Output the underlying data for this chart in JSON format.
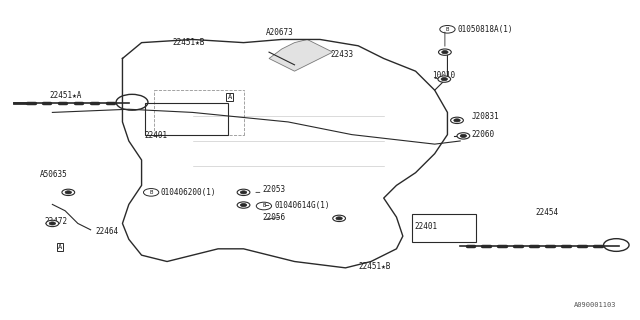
{
  "bg_color": "#ffffff",
  "line_color": "#2a2a2a",
  "text_color": "#1a1a1a",
  "fig_width": 6.4,
  "fig_height": 3.2,
  "dpi": 100,
  "watermark": "A090001103",
  "labels": {
    "22451B_top": [
      0.285,
      0.845,
      "22451★B"
    ],
    "A20673": [
      0.43,
      0.885,
      "A20673"
    ],
    "22433": [
      0.535,
      0.82,
      "22433"
    ],
    "B01050818A": [
      0.75,
      0.91,
      "Ⓑ  01050818A(1)"
    ],
    "10010": [
      0.695,
      0.755,
      "10010"
    ],
    "22451A": [
      0.12,
      0.69,
      "22451★A"
    ],
    "22401_left": [
      0.245,
      0.565,
      "22401"
    ],
    "J20831": [
      0.755,
      0.625,
      "J20831"
    ],
    "22060": [
      0.745,
      0.575,
      "22060"
    ],
    "A50635": [
      0.075,
      0.44,
      "A50635"
    ],
    "B010406200": [
      0.235,
      0.395,
      "Ⓑ  010406200(1)"
    ],
    "22053": [
      0.445,
      0.4,
      "22053"
    ],
    "B01040614G": [
      0.465,
      0.345,
      "Ⓑ  01040614G(1)"
    ],
    "22056": [
      0.435,
      0.315,
      "22056"
    ],
    "22472": [
      0.09,
      0.295,
      "22472"
    ],
    "22464": [
      0.17,
      0.28,
      "22464"
    ],
    "22401_right": [
      0.68,
      0.285,
      "22401"
    ],
    "22454": [
      0.84,
      0.33,
      "22454"
    ],
    "22451B_bot": [
      0.59,
      0.155,
      "22451★B"
    ],
    "A_box_left": [
      0.095,
      0.225,
      "A"
    ],
    "A_box_mid": [
      0.36,
      0.7,
      "A"
    ]
  }
}
